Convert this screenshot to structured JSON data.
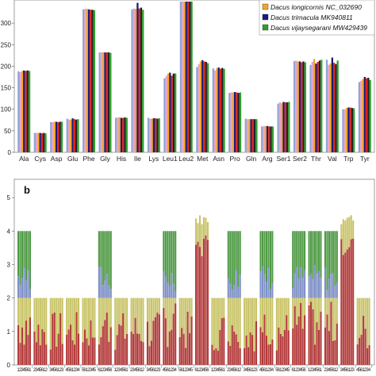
{
  "chart_data": [
    {
      "type": "bar",
      "panel_label": "",
      "categories": [
        "Ala",
        "Cys",
        "Asp",
        "Glu",
        "Phe",
        "Gly",
        "His",
        "Ile",
        "Lys",
        "Leu1",
        "Leu2",
        "Met",
        "Asn",
        "Pro",
        "Gln",
        "Arg",
        "Ser1",
        "Ser2",
        "Thr",
        "Val",
        "Trp",
        "Tyr"
      ],
      "ylim": [
        0,
        350
      ],
      "yticks": [
        0,
        50,
        100,
        150,
        200,
        250,
        300
      ],
      "series": [
        {
          "name": "",
          "color": "#8ea3d6",
          "values": [
            188,
            45,
            70,
            78,
            332,
            232,
            80,
            332,
            80,
            172,
            350,
            198,
            195,
            138,
            78,
            60,
            113,
            212,
            203,
            215,
            100,
            163
          ]
        },
        {
          "name": "",
          "color": "#e8a4c8",
          "values": [
            186,
            45,
            70,
            76,
            333,
            232,
            81,
            334,
            78,
            178,
            350,
            205,
            190,
            139,
            77,
            61,
            116,
            213,
            210,
            203,
            100,
            166
          ]
        },
        {
          "name": "Dacus longicornis NC_032690",
          "color": "#f5a623",
          "values": [
            189,
            45,
            71,
            76,
            333,
            232,
            81,
            333,
            78,
            183,
            350,
            211,
            195,
            139,
            77,
            61,
            114,
            211,
            217,
            206,
            103,
            170
          ]
        },
        {
          "name": "Dacus trimacula MK940811",
          "color": "#1a1a7a",
          "values": [
            190,
            45,
            71,
            79,
            332,
            232,
            80,
            347,
            79,
            185,
            350,
            214,
            197,
            140,
            77,
            61,
            117,
            211,
            206,
            220,
            104,
            175
          ]
        },
        {
          "name": "",
          "color": "#e02020",
          "values": [
            189,
            44,
            70,
            77,
            331,
            232,
            80,
            334,
            79,
            178,
            350,
            211,
            194,
            139,
            77,
            60,
            116,
            209,
            210,
            208,
            104,
            172
          ]
        },
        {
          "name": "",
          "color": "#222222",
          "values": [
            190,
            45,
            71,
            76,
            331,
            232,
            81,
            336,
            78,
            183,
            350,
            210,
            196,
            138,
            77,
            60,
            116,
            211,
            213,
            205,
            103,
            173
          ]
        },
        {
          "name": "Dacus vijaysegarani MW429439",
          "color": "#2ca02c",
          "values": [
            189,
            44,
            71,
            77,
            330,
            231,
            80,
            331,
            79,
            183,
            350,
            207,
            194,
            139,
            77,
            60,
            117,
            209,
            215,
            213,
            102,
            168
          ]
        }
      ]
    },
    {
      "type": "bar",
      "stacked": true,
      "panel_label": "b",
      "ylim": [
        0,
        5.5
      ],
      "yticks": [
        0,
        1,
        2,
        3,
        4,
        5
      ],
      "codon_groups": [
        4,
        2,
        2,
        2,
        2,
        4,
        2,
        2,
        2,
        4,
        2,
        1,
        2,
        4,
        2,
        4,
        2,
        4,
        4,
        4,
        1,
        2
      ],
      "x_label_cycle": [
        "1",
        "2",
        "3",
        "4",
        "5",
        "6"
      ],
      "segment_colors": [
        "#b33a3a",
        "#c9c46a",
        "#7d8fc4",
        "#4f9a45"
      ]
    }
  ]
}
